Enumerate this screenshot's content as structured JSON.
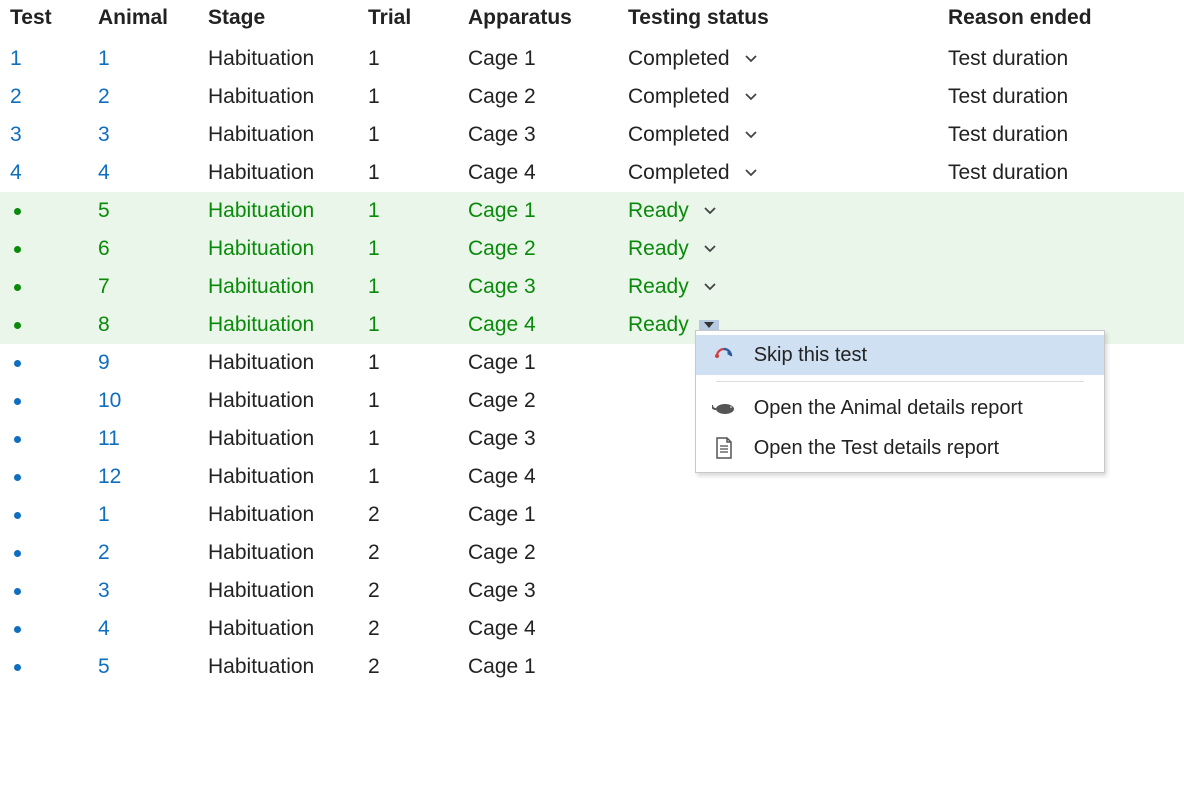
{
  "columns": {
    "test": "Test",
    "animal": "Animal",
    "stage": "Stage",
    "trial": "Trial",
    "apparatus": "Apparatus",
    "status": "Testing status",
    "reason": "Reason ended"
  },
  "rows": [
    {
      "test": "1",
      "animal": "1",
      "stage": "Habituation",
      "trial": "1",
      "apparatus": "Cage 1",
      "status": "Completed",
      "reason": "Test duration",
      "state": "completed"
    },
    {
      "test": "2",
      "animal": "2",
      "stage": "Habituation",
      "trial": "1",
      "apparatus": "Cage 2",
      "status": "Completed",
      "reason": "Test duration",
      "state": "completed"
    },
    {
      "test": "3",
      "animal": "3",
      "stage": "Habituation",
      "trial": "1",
      "apparatus": "Cage 3",
      "status": "Completed",
      "reason": "Test duration",
      "state": "completed"
    },
    {
      "test": "4",
      "animal": "4",
      "stage": "Habituation",
      "trial": "1",
      "apparatus": "Cage 4",
      "status": "Completed",
      "reason": "Test duration",
      "state": "completed"
    },
    {
      "test": "•",
      "animal": "5",
      "stage": "Habituation",
      "trial": "1",
      "apparatus": "Cage 1",
      "status": "Ready",
      "reason": "",
      "state": "ready"
    },
    {
      "test": "•",
      "animal": "6",
      "stage": "Habituation",
      "trial": "1",
      "apparatus": "Cage 2",
      "status": "Ready",
      "reason": "",
      "state": "ready"
    },
    {
      "test": "•",
      "animal": "7",
      "stage": "Habituation",
      "trial": "1",
      "apparatus": "Cage 3",
      "status": "Ready",
      "reason": "",
      "state": "ready"
    },
    {
      "test": "•",
      "animal": "8",
      "stage": "Habituation",
      "trial": "1",
      "apparatus": "Cage 4",
      "status": "Ready",
      "reason": "",
      "state": "ready",
      "menu_open": true
    },
    {
      "test": "•",
      "animal": "9",
      "stage": "Habituation",
      "trial": "1",
      "apparatus": "Cage 1",
      "status": "",
      "reason": "",
      "state": "pending"
    },
    {
      "test": "•",
      "animal": "10",
      "stage": "Habituation",
      "trial": "1",
      "apparatus": "Cage 2",
      "status": "",
      "reason": "",
      "state": "pending"
    },
    {
      "test": "•",
      "animal": "11",
      "stage": "Habituation",
      "trial": "1",
      "apparatus": "Cage 3",
      "status": "",
      "reason": "",
      "state": "pending"
    },
    {
      "test": "•",
      "animal": "12",
      "stage": "Habituation",
      "trial": "1",
      "apparatus": "Cage 4",
      "status": "",
      "reason": "",
      "state": "pending"
    },
    {
      "test": "•",
      "animal": "1",
      "stage": "Habituation",
      "trial": "2",
      "apparatus": "Cage 1",
      "status": "",
      "reason": "",
      "state": "pending"
    },
    {
      "test": "•",
      "animal": "2",
      "stage": "Habituation",
      "trial": "2",
      "apparatus": "Cage 2",
      "status": "",
      "reason": "",
      "state": "pending"
    },
    {
      "test": "•",
      "animal": "3",
      "stage": "Habituation",
      "trial": "2",
      "apparatus": "Cage 3",
      "status": "",
      "reason": "",
      "state": "pending"
    },
    {
      "test": "•",
      "animal": "4",
      "stage": "Habituation",
      "trial": "2",
      "apparatus": "Cage 4",
      "status": "",
      "reason": "",
      "state": "pending"
    },
    {
      "test": "•",
      "animal": "5",
      "stage": "Habituation",
      "trial": "2",
      "apparatus": "Cage 1",
      "status": "",
      "reason": "",
      "state": "pending"
    }
  ],
  "menu": {
    "skip": "Skip this test",
    "animal_report": "Open the Animal details report",
    "test_report": "Open the Test details report"
  },
  "colors": {
    "link": "#106ebe",
    "green": "#0a8a0a",
    "ready_bg": "#e9f6e9",
    "menu_highlight": "#cfe0f2",
    "dropdown_active": "#b6cae0"
  }
}
